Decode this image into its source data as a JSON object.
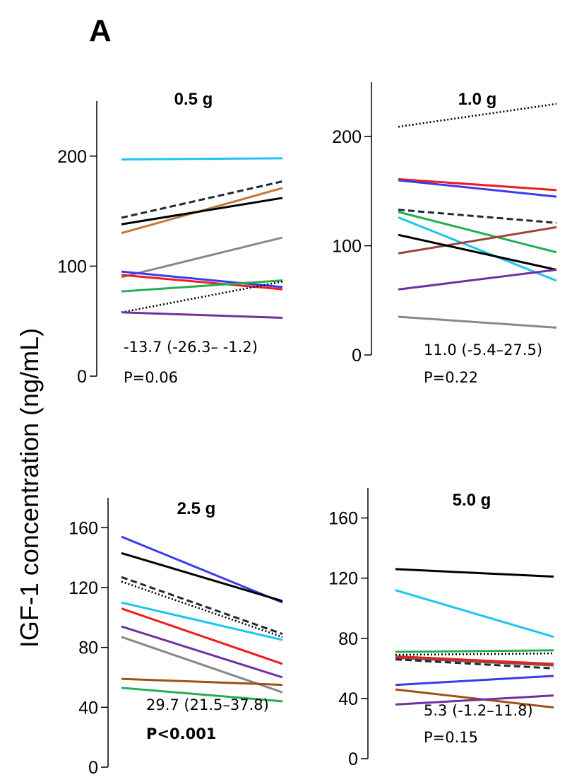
{
  "figure": {
    "panel_label": "A",
    "ylabel": "IGF-1 concentration (ng/mL)"
  },
  "chart_data": [
    {
      "type": "line",
      "title": "0.5 g",
      "ylim": [
        0,
        250
      ],
      "yticks": [
        0,
        100,
        200
      ],
      "x": [
        0,
        1
      ],
      "effect": "-13.7 (-26.3– -1.2)",
      "pvalue": "P=0.06",
      "pvalue_bold": false,
      "series": [
        {
          "color": "#1fc3f0",
          "style": "solid",
          "values": [
            197,
            198
          ]
        },
        {
          "color": "#1a2a3a",
          "style": "dashed",
          "values": [
            144,
            177
          ]
        },
        {
          "color": "#c07838",
          "style": "solid",
          "values": [
            130,
            171
          ]
        },
        {
          "color": "#000000",
          "style": "solid",
          "values": [
            138,
            162
          ]
        },
        {
          "color": "#888888",
          "style": "solid",
          "values": [
            90,
            126
          ]
        },
        {
          "color": "#3a3af0",
          "style": "solid",
          "values": [
            95,
            81
          ]
        },
        {
          "color": "#ee1c1c",
          "style": "solid",
          "values": [
            92,
            79
          ]
        },
        {
          "color": "#20b050",
          "style": "solid",
          "values": [
            77,
            87
          ]
        },
        {
          "color": "#000000",
          "style": "dotted",
          "values": [
            58,
            86
          ]
        },
        {
          "color": "#7030a0",
          "style": "solid",
          "values": [
            58,
            53
          ]
        }
      ]
    },
    {
      "type": "line",
      "title": "1.0 g",
      "ylim": [
        0,
        250
      ],
      "yticks": [
        0,
        100,
        200
      ],
      "x": [
        0,
        1
      ],
      "effect": "11.0 (-5.4–27.5)",
      "pvalue": "P=0.22",
      "pvalue_bold": false,
      "series": [
        {
          "color": "#000000",
          "style": "dotted",
          "values": [
            209,
            230
          ]
        },
        {
          "color": "#ee1c1c",
          "style": "solid",
          "values": [
            161,
            151
          ]
        },
        {
          "color": "#3a3af0",
          "style": "solid",
          "values": [
            160,
            145
          ]
        },
        {
          "color": "#1a2a3a",
          "style": "dashed",
          "values": [
            133,
            121
          ]
        },
        {
          "color": "#20b050",
          "style": "solid",
          "values": [
            131,
            94
          ]
        },
        {
          "color": "#1fc3f0",
          "style": "solid",
          "values": [
            126,
            68
          ]
        },
        {
          "color": "#a04040",
          "style": "solid",
          "values": [
            93,
            117
          ]
        },
        {
          "color": "#000000",
          "style": "solid",
          "values": [
            110,
            78
          ]
        },
        {
          "color": "#7030a0",
          "style": "solid",
          "values": [
            60,
            78
          ]
        },
        {
          "color": "#888888",
          "style": "solid",
          "values": [
            35,
            25
          ]
        }
      ]
    },
    {
      "type": "line",
      "title": "2.5 g",
      "ylim": [
        0,
        180
      ],
      "yticks": [
        0,
        40,
        80,
        120,
        160
      ],
      "x": [
        0,
        1
      ],
      "effect": "29.7 (21.5–37.8)",
      "pvalue": "P<0.001",
      "pvalue_bold": true,
      "series": [
        {
          "color": "#3a3af0",
          "style": "solid",
          "values": [
            154,
            110
          ]
        },
        {
          "color": "#000000",
          "style": "solid",
          "values": [
            143,
            111
          ]
        },
        {
          "color": "#1a2a3a",
          "style": "dashed",
          "values": [
            127,
            89
          ]
        },
        {
          "color": "#000000",
          "style": "dotted",
          "values": [
            124,
            87
          ]
        },
        {
          "color": "#1fc3f0",
          "style": "solid",
          "values": [
            110,
            85
          ]
        },
        {
          "color": "#ee1c1c",
          "style": "solid",
          "values": [
            106,
            69
          ]
        },
        {
          "color": "#7030a0",
          "style": "solid",
          "values": [
            94,
            60
          ]
        },
        {
          "color": "#888888",
          "style": "solid",
          "values": [
            87,
            50
          ]
        },
        {
          "color": "#a05010",
          "style": "solid",
          "values": [
            59,
            55
          ]
        },
        {
          "color": "#20b050",
          "style": "solid",
          "values": [
            53,
            44
          ]
        }
      ]
    },
    {
      "type": "line",
      "title": "5.0 g",
      "ylim": [
        0,
        180
      ],
      "yticks": [
        0,
        40,
        80,
        120,
        160
      ],
      "x": [
        0,
        1
      ],
      "effect": "5.3 (-1.2–11.8)",
      "pvalue": "P=0.15",
      "pvalue_bold": false,
      "series": [
        {
          "color": "#000000",
          "style": "solid",
          "values": [
            126,
            121
          ]
        },
        {
          "color": "#1fc3f0",
          "style": "solid",
          "values": [
            112,
            81
          ]
        },
        {
          "color": "#20b050",
          "style": "solid",
          "values": [
            71,
            72
          ]
        },
        {
          "color": "#000000",
          "style": "dotted",
          "values": [
            69,
            70
          ]
        },
        {
          "color": "#ee1c1c",
          "style": "solid",
          "values": [
            68,
            63
          ]
        },
        {
          "color": "#a04040",
          "style": "solid",
          "values": [
            67,
            62
          ]
        },
        {
          "color": "#1a2a3a",
          "style": "dashed",
          "values": [
            66,
            60
          ]
        },
        {
          "color": "#3a3af0",
          "style": "solid",
          "values": [
            49,
            55
          ]
        },
        {
          "color": "#a05010",
          "style": "solid",
          "values": [
            46,
            34
          ]
        },
        {
          "color": "#7030a0",
          "style": "solid",
          "values": [
            36,
            42
          ]
        }
      ]
    }
  ]
}
